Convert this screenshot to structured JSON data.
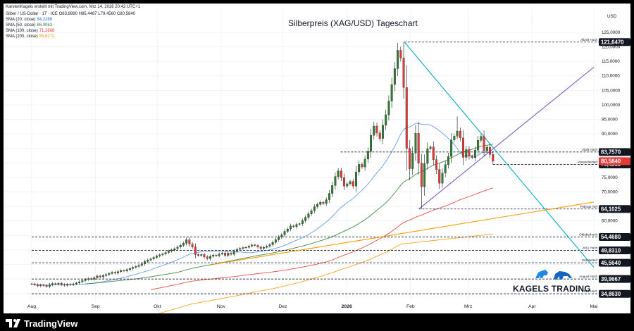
{
  "header": {
    "created_by": "KarstenKagels erstellt mit TradingView.com, Mrz 14, 2026 20:42 UTC+1",
    "symbol_line": "Silber / US-Dollar · 1T · ICE  O83,8990  H85,4487  L79,4560  C80,5840",
    "indicators": [
      {
        "label": "SMA (20, close)",
        "value": "84,2288",
        "color": "#2962ff"
      },
      {
        "label": "SMA (50, close)",
        "value": "86,3063",
        "color": "#2e7d32"
      },
      {
        "label": "SMA (100, close)",
        "value": "71,2668",
        "color": "#e53935"
      },
      {
        "label": "SMA (200, close)",
        "value": "55,6272",
        "color": "#ff9800"
      }
    ]
  },
  "chart_data": {
    "type": "candlestick",
    "title": "Silberpreis (XAG/USD) Tageschart",
    "currency": "USD",
    "ylim": [
      32,
      133
    ],
    "y_ticks": [
      35,
      40,
      45,
      50,
      55,
      60,
      65,
      70,
      75,
      80,
      85,
      90,
      95,
      100,
      105,
      110,
      115,
      120,
      125
    ],
    "y_tick_labels": [
      "35,0000",
      "40,0000",
      "45,0000",
      "50,0000",
      "55,0000",
      "60,0000",
      "65,0000",
      "70,0000",
      "75,0000",
      "80,0000",
      "85,0000",
      "90,0000",
      "95,0000",
      "100,0000",
      "105,0000",
      "110,0000",
      "115,0000",
      "120,0000",
      "125,0000"
    ],
    "x_labels": [
      "Aug",
      "Sep",
      "Okt",
      "Nov",
      "Dez",
      "2026",
      "Feb",
      "Mrz",
      "Apr",
      "Mai"
    ],
    "x_label_dates": [
      "2025-08-01",
      "2025-09-01",
      "2025-10-01",
      "2025-11-01",
      "2025-12-01",
      "2026-01-01",
      "2026-02-01",
      "2026-03-01",
      "2026-04-01",
      "2026-05-01"
    ],
    "last_date": "2026-03-13",
    "candle_colors": {
      "up": "#2e7d32",
      "down": "#e53935"
    },
    "closes": [
      38.3,
      38.0,
      37.6,
      37.9,
      37.7,
      37.4,
      38.0,
      38.4,
      38.2,
      38.5,
      38.1,
      37.8,
      38.2,
      38.0,
      38.3,
      38.6,
      39.0,
      39.4,
      39.8,
      40.1,
      39.9,
      40.4,
      41.0,
      40.7,
      41.2,
      41.5,
      41.9,
      42.3,
      42.0,
      42.5,
      42.9,
      42.7,
      43.2,
      43.6,
      44.0,
      44.3,
      44.7,
      45.2,
      46.0,
      46.5,
      46.9,
      47.4,
      47.9,
      48.3,
      48.6,
      49.1,
      49.6,
      50.0,
      50.4,
      51.0,
      51.6,
      52.3,
      53.5,
      52.0,
      51.0,
      48.4,
      48.1,
      48.4,
      47.6,
      47.0,
      47.8,
      48.2,
      48.0,
      48.6,
      48.9,
      48.1,
      48.9,
      48.5,
      49.5,
      50.2,
      50.5,
      50.8,
      50.9,
      51.3,
      51.7,
      51.5,
      51.0,
      50.5,
      50.9,
      51.3,
      51.8,
      52.6,
      53.5,
      54.4,
      55.2,
      56.4,
      57.2,
      58.3,
      58.0,
      58.8,
      59.0,
      60.1,
      61.2,
      62.4,
      63.5,
      64.9,
      65.7,
      66.4,
      66.0,
      67.3,
      69.5,
      72.2,
      75.3,
      77.2,
      74.9,
      72.0,
      72.8,
      73.6,
      72.0,
      76.9,
      79.5,
      78.6,
      81.3,
      84.0,
      89.5,
      92.7,
      90.3,
      88.4,
      93.0,
      96.6,
      101.3,
      107.0,
      112.5,
      118.8,
      116.2,
      106.0,
      85.0,
      78.0,
      83.4,
      90.2,
      79.9,
      71.8,
      79.8,
      84.9,
      85.5,
      81.1,
      77.7,
      73.0,
      76.5,
      79.4,
      82.2,
      87.9,
      89.2,
      91.0,
      88.6,
      81.9,
      84.6,
      82.3,
      81.8,
      84.4,
      87.8,
      89.1,
      84.2,
      85.4,
      82.9,
      80.58
    ],
    "events": {
      "ath_index": 125,
      "ath_high": 121.647,
      "feb_low_index": 131,
      "feb_low_low": 64.1025,
      "corr_high_index": 143,
      "corr_high_high": 96.0,
      "crash_index": 127,
      "crash_low": 74.0
    },
    "sma_labels": [
      "SMA 20",
      "SMA 50",
      "SMA 100",
      "SMA 200"
    ],
    "horizontal_levels": [
      {
        "value": 121.647,
        "label": "121,6470",
        "note": "Allzeit Hoch",
        "from_date": "2026-01-29",
        "bg": "#131722",
        "color": "#131722"
      },
      {
        "value": 83.757,
        "label": "83,7570",
        "note": "2025 Hoch",
        "from_date": "2025-12-29",
        "bg": "#131722",
        "color": "#131722"
      },
      {
        "value": 79.456,
        "label": "79,4560",
        "note": "Vorwochentief",
        "from_date": "2026-03-13",
        "bg": "#131722",
        "color": "#131722"
      },
      {
        "value": 64.1025,
        "label": "64,1025",
        "note": "Februar Tief",
        "from_date": "2026-02-05",
        "bg": "#131722",
        "color": "#131722"
      },
      {
        "value": 54.468,
        "label": "54,4680",
        "note": "Oktoberhoch",
        "from_date": "2025-08-01",
        "bg": "#131722",
        "color": "#131722"
      },
      {
        "value": 49.831,
        "label": "49,8310",
        "note": "2011 Hoch",
        "from_date": "2025-08-01",
        "bg": "#131722",
        "color": "#131722"
      },
      {
        "value": 45.564,
        "label": "45,5640",
        "note": "Oktobertief",
        "from_date": "2025-08-01",
        "bg": "#131722",
        "color": "#131722"
      },
      {
        "value": 39.9667,
        "label": "39,9667",
        "note": "August Hoch",
        "from_date": "2025-08-01",
        "bg": "#131722",
        "color": "#131722"
      },
      {
        "value": 34.863,
        "label": "34,8630",
        "note": "2024 Hoch",
        "from_date": "2025-08-01",
        "bg": "#131722",
        "color": "#131722"
      }
    ],
    "last_price": {
      "value": 80.584,
      "label": "80,5840",
      "bg": "#e53935"
    },
    "trendlines": [
      {
        "name": "ATH-Abwärtstrend",
        "color": "#00acc1",
        "p1": {
          "date": "2026-01-29",
          "value": 121.647
        },
        "p2": {
          "date": "2026-05-01",
          "value": 44.0
        }
      },
      {
        "name": "Aufwärtstrend Feb",
        "color": "#7e57c2",
        "p1": {
          "date": "2026-02-05",
          "value": 64.1
        },
        "p2": {
          "date": "2026-05-01",
          "value": 113.0
        }
      },
      {
        "name": "Langfristiger Aufwärtstrend",
        "color": "#ff9800",
        "p1": {
          "date": "2025-10-28",
          "value": 45.0
        },
        "p2": {
          "date": "2026-05-01",
          "value": 66.5
        }
      }
    ]
  },
  "branding": {
    "watermark": "KAGELS TRADING",
    "footer_logo": "TradingView",
    "bull_bear_colors": {
      "bull": "#1e88e5",
      "bear": "#1565c0"
    }
  }
}
